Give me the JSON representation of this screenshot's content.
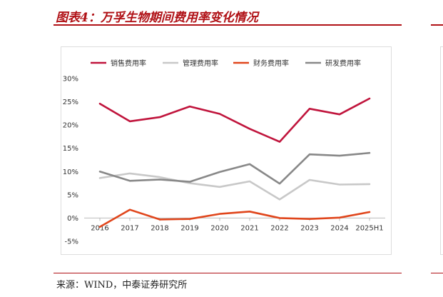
{
  "figure": {
    "title": "图表4：万孚生物期间费用率变化情况",
    "source": "来源：WIND，中泰证券研究所"
  },
  "colors": {
    "accent": "#b01116"
  },
  "chart_data": {
    "type": "line",
    "title": "",
    "xlabel": "",
    "ylabel": "",
    "categories": [
      "2016",
      "2017",
      "2018",
      "2019",
      "2020",
      "2021",
      "2022",
      "2023",
      "2024",
      "2025H1"
    ],
    "ylim": [
      -5,
      30
    ],
    "yticks": [
      -5,
      0,
      5,
      10,
      15,
      20,
      25,
      30
    ],
    "ytick_labels": [
      "-5%",
      "0%",
      "5%",
      "10%",
      "15%",
      "20%",
      "25%",
      "30%"
    ],
    "grid": false,
    "legend_position": "top",
    "series": [
      {
        "name": "销售费用率",
        "color": "#c0143c",
        "values": [
          24.6,
          20.8,
          21.7,
          24.0,
          22.4,
          19.2,
          16.4,
          23.5,
          22.3,
          25.7
        ]
      },
      {
        "name": "管理费用率",
        "color": "#c8c8c8",
        "values": [
          8.6,
          9.6,
          8.8,
          7.5,
          6.7,
          7.9,
          4.0,
          8.2,
          7.2,
          7.3
        ]
      },
      {
        "name": "财务费用率",
        "color": "#e0461c",
        "values": [
          -1.9,
          1.8,
          -0.3,
          -0.2,
          0.9,
          1.4,
          0.0,
          -0.2,
          0.1,
          1.3
        ]
      },
      {
        "name": "研发费用率",
        "color": "#888888",
        "values": [
          10.0,
          8.0,
          8.3,
          7.8,
          9.9,
          11.6,
          7.4,
          13.7,
          13.4,
          14.0
        ]
      }
    ]
  }
}
